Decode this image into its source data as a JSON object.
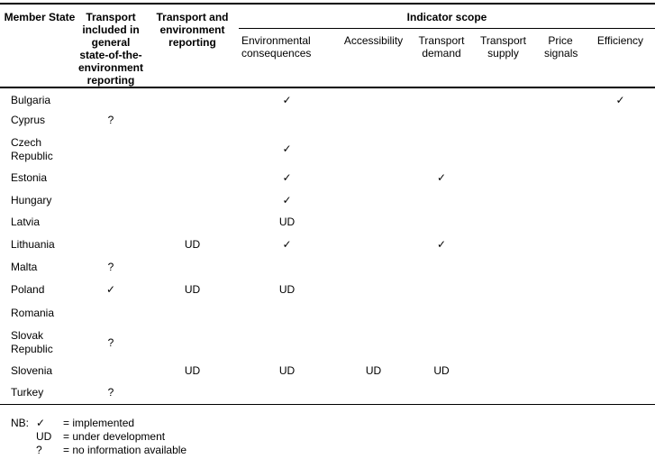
{
  "headers": {
    "member_state": "Member State",
    "transport_general": "Transport included in general state-of-the-environment reporting",
    "transport_env": "Transport and environment reporting",
    "indicator_scope": "Indicator scope",
    "scope_columns": [
      "Environmental consequences",
      "Accessibility",
      "Transport demand",
      "Transport supply",
      "Price signals",
      "Efficiency"
    ]
  },
  "rows": [
    {
      "state": "Bulgaria",
      "cells": [
        "",
        "",
        "✓",
        "",
        "",
        "",
        "",
        "✓"
      ]
    },
    {
      "state": "Cyprus",
      "cells": [
        "?",
        "",
        "",
        "",
        "",
        "",
        "",
        ""
      ]
    },
    {
      "state": "Czech Republic",
      "cells": [
        "",
        "",
        "✓",
        "",
        "",
        "",
        "",
        ""
      ]
    },
    {
      "state": "Estonia",
      "cells": [
        "",
        "",
        "✓",
        "",
        "✓",
        "",
        "",
        ""
      ]
    },
    {
      "state": "Hungary",
      "cells": [
        "",
        "",
        "✓",
        "",
        "",
        "",
        "",
        ""
      ]
    },
    {
      "state": "Latvia",
      "cells": [
        "",
        "",
        "UD",
        "",
        "",
        "",
        "",
        ""
      ]
    },
    {
      "state": "Lithuania",
      "cells": [
        "",
        "UD",
        "✓",
        "",
        "✓",
        "",
        "",
        ""
      ]
    },
    {
      "state": "Malta",
      "cells": [
        "?",
        "",
        "",
        "",
        "",
        "",
        "",
        ""
      ]
    },
    {
      "state": "Poland",
      "cells": [
        "✓",
        "UD",
        "UD",
        "",
        "",
        "",
        "",
        ""
      ]
    },
    {
      "state": "Romania",
      "cells": [
        "",
        "",
        "",
        "",
        "",
        "",
        "",
        ""
      ]
    },
    {
      "state": "Slovak Republic",
      "cells": [
        "?",
        "",
        "",
        "",
        "",
        "",
        "",
        ""
      ]
    },
    {
      "state": "Slovenia",
      "cells": [
        "",
        "UD",
        "UD",
        "UD",
        "UD",
        "",
        "",
        ""
      ]
    },
    {
      "state": "Turkey",
      "cells": [
        "?",
        "",
        "",
        "",
        "",
        "",
        "",
        ""
      ]
    }
  ],
  "notes": {
    "prefix": "NB:",
    "items": [
      {
        "symbol": "✓",
        "meaning": "= implemented"
      },
      {
        "symbol": "UD",
        "meaning": "= under development"
      },
      {
        "symbol": "?",
        "meaning": "= no information available"
      }
    ]
  }
}
